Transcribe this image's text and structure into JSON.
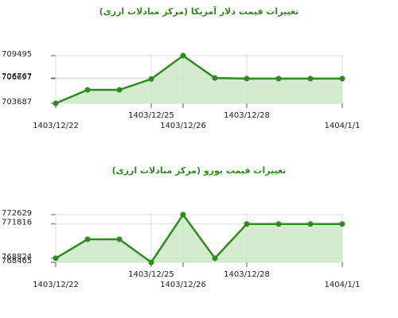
{
  "chart_data": [
    {
      "type": "line",
      "title": "تغییرات قیمت دلار آمریکا (مرکز مبادلات ارزی)",
      "categories": [
        "1403/12/22",
        null,
        null,
        "1403/12/25",
        "1403/12/26",
        null,
        "1403/12/28",
        null,
        null,
        "1404/1/1"
      ],
      "values": [
        703687,
        705330,
        705330,
        706650,
        709495,
        706767,
        706697,
        706697,
        706697,
        706697
      ],
      "color": "#2e8b1e",
      "ylim": [
        703687,
        709495
      ],
      "yticks": [
        703687,
        706697,
        706767,
        709495
      ],
      "grid": true
    },
    {
      "type": "line",
      "title": "تغییرات قیمت یورو (مرکز مبادلات ارزی)",
      "categories": [
        "1403/12/22",
        null,
        null,
        "1403/12/25",
        "1403/12/26",
        null,
        "1403/12/28",
        null,
        null,
        "1404/1/1"
      ],
      "values": [
        768824,
        770478,
        770478,
        768465,
        772629,
        768824,
        771816,
        771816,
        771816,
        771816
      ],
      "color": "#2e8b1e",
      "ylim": [
        768465,
        772629
      ],
      "yticks": [
        768465,
        768824,
        771816,
        772629
      ],
      "grid": true
    }
  ]
}
